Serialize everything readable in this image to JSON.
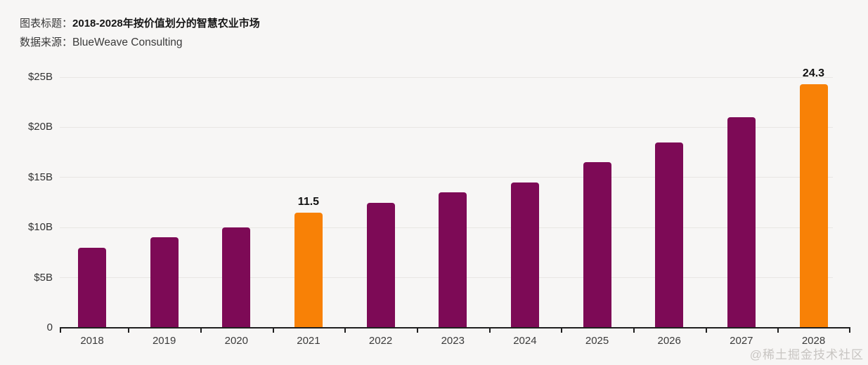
{
  "page": {
    "title_label": "图表标题：",
    "title": "2018-2028年按价值划分的智慧农业市场",
    "source_label": "数据来源：",
    "source": "BlueWeave Consulting",
    "watermark": "@稀土掘金技术社区"
  },
  "colors": {
    "background": "#F7F6F5",
    "bar_primary": "#7D0A56",
    "bar_highlight": "#F88106",
    "gridline": "#E8E6E3",
    "axis": "#1F1F1F",
    "label_text": "#333333",
    "value_label_text": "#111111",
    "watermark": "#C8C5C2"
  },
  "chart_data": {
    "type": "bar",
    "title": "2018-2028年按价值划分的智慧农业市场",
    "source": "BlueWeave Consulting",
    "categories": [
      "2018",
      "2019",
      "2020",
      "2021",
      "2022",
      "2023",
      "2024",
      "2025",
      "2026",
      "2027",
      "2028"
    ],
    "values": [
      8.0,
      9.0,
      10.0,
      11.5,
      12.5,
      13.5,
      14.5,
      16.5,
      18.5,
      21.0,
      24.3
    ],
    "unit": "billion USD",
    "highlighted_categories": [
      "2021",
      "2028"
    ],
    "data_labels": {
      "2021": "11.5",
      "2028": "24.3"
    },
    "xlabel": "",
    "ylabel": "",
    "ylim": [
      0,
      25
    ],
    "y_tick_values": [
      0,
      5,
      10,
      15,
      20,
      25
    ],
    "y_tick_labels": [
      "0",
      "$5B",
      "$10B",
      "$15B",
      "$20B",
      "$25B"
    ],
    "grid": true,
    "legend": false
  }
}
